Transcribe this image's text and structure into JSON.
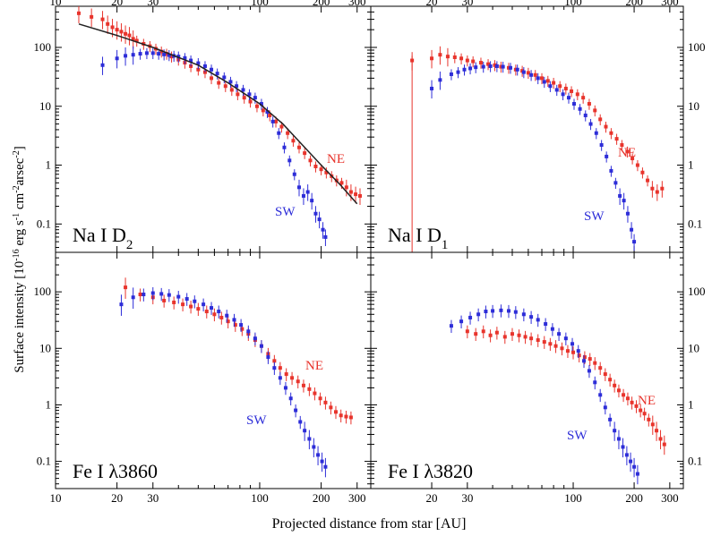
{
  "figure": {
    "ylabel": "Surface intensity [10",
    "ylabel_exp1": "-16",
    "ylabel_mid1": " erg s",
    "ylabel_exp2": "-1",
    "ylabel_mid2": " cm",
    "ylabel_exp3": "-2",
    "ylabel_mid3": "arsec",
    "ylabel_exp4": "-2",
    "ylabel_end": "]",
    "xlabel": "Projected distance from star [AU]",
    "x_ticks": [
      10,
      20,
      30,
      100,
      200,
      300
    ],
    "y_ticks_labels": [
      "0.1",
      "1",
      "10",
      "100"
    ],
    "colors": {
      "NE": "#e8342c",
      "SW": "#2d2dd8",
      "fit": "#222222",
      "frame": "#000000"
    }
  },
  "chart_data": [
    {
      "type": "scatter",
      "panel": "top-left",
      "title_base": "Na I D",
      "title_sub": "2",
      "xlim": [
        10,
        350
      ],
      "ylim": [
        0.033,
        500
      ],
      "xscale": "log",
      "yscale": "log",
      "labels": {
        "NE": "NE",
        "SW": "SW"
      },
      "fit": {
        "name": "model",
        "x": [
          13,
          20,
          30,
          50,
          70,
          100,
          130,
          160,
          200,
          250,
          300
        ],
        "y": [
          250,
          160,
          100,
          50,
          25,
          11,
          5,
          2.3,
          1.0,
          0.45,
          0.22
        ]
      },
      "series": [
        {
          "name": "NE",
          "x": [
            13,
            15,
            17,
            18,
            19,
            20,
            21,
            22,
            23,
            24,
            25,
            27,
            29,
            31,
            33,
            35,
            37,
            40,
            43,
            46,
            50,
            54,
            58,
            63,
            68,
            73,
            78,
            84,
            90,
            97,
            104,
            112,
            120,
            128,
            137,
            146,
            156,
            166,
            177,
            188,
            200,
            212,
            225,
            238,
            252,
            266,
            280,
            295,
            310
          ],
          "y": [
            380,
            330,
            300,
            250,
            220,
            200,
            185,
            170,
            160,
            140,
            130,
            115,
            105,
            95,
            85,
            78,
            70,
            62,
            55,
            48,
            42,
            38,
            30,
            25,
            22,
            19,
            16,
            14,
            12,
            10,
            8.5,
            7,
            5.5,
            4.5,
            3.5,
            2.6,
            2.0,
            1.6,
            1.2,
            0.95,
            0.85,
            0.75,
            0.65,
            0.55,
            0.5,
            0.42,
            0.35,
            0.32,
            0.3
          ]
        },
        {
          "name": "SW",
          "x": [
            17,
            20,
            22,
            24,
            26,
            28,
            30,
            32,
            34,
            36,
            38,
            40,
            43,
            46,
            50,
            54,
            58,
            62,
            67,
            72,
            77,
            83,
            89,
            95,
            102,
            109,
            116,
            124,
            132,
            140,
            148,
            156,
            164,
            172,
            180,
            188,
            196,
            204,
            210
          ],
          "y": [
            50,
            65,
            72,
            75,
            78,
            80,
            80,
            78,
            76,
            74,
            72,
            70,
            66,
            60,
            54,
            48,
            42,
            36,
            31,
            26,
            22,
            19,
            16,
            14,
            11,
            8,
            5.5,
            3.5,
            2.0,
            1.2,
            0.7,
            0.42,
            0.3,
            0.35,
            0.25,
            0.15,
            0.12,
            0.08,
            0.06
          ]
        }
      ]
    },
    {
      "type": "scatter",
      "panel": "top-right",
      "title_base": "Na I D",
      "title_sub": "1",
      "xlim": [
        10,
        350
      ],
      "ylim": [
        0.033,
        500
      ],
      "xscale": "log",
      "yscale": "log",
      "labels": {
        "NE": "NE",
        "SW": "SW"
      },
      "series": [
        {
          "name": "NE",
          "x": [
            16,
            20,
            22,
            24,
            26,
            28,
            30,
            32,
            35,
            38,
            41,
            44,
            48,
            52,
            56,
            60,
            65,
            70,
            75,
            80,
            86,
            92,
            98,
            105,
            112,
            120,
            128,
            136,
            145,
            154,
            164,
            174,
            185,
            196,
            208,
            220,
            233,
            246,
            260,
            275
          ],
          "y": [
            60,
            65,
            75,
            70,
            68,
            65,
            60,
            58,
            55,
            52,
            50,
            47,
            45,
            42,
            40,
            37,
            34,
            30,
            27,
            25,
            22,
            20,
            18,
            16,
            14,
            11,
            8.5,
            6,
            4.5,
            3.5,
            2.8,
            2.2,
            1.7,
            1.3,
            1.0,
            0.75,
            0.55,
            0.4,
            0.35,
            0.4
          ]
        },
        {
          "name": "SW",
          "x": [
            20,
            22,
            25,
            27,
            29,
            31,
            33,
            36,
            39,
            42,
            45,
            49,
            53,
            57,
            62,
            67,
            72,
            77,
            83,
            89,
            95,
            101,
            108,
            115,
            122,
            130,
            138,
            146,
            154,
            162,
            170,
            178,
            186,
            194,
            200
          ],
          "y": [
            20,
            28,
            35,
            38,
            42,
            44,
            46,
            47,
            48,
            48,
            47,
            45,
            42,
            38,
            34,
            30,
            26,
            22,
            19,
            16,
            14,
            11,
            9,
            7,
            5,
            3.5,
            2.2,
            1.4,
            0.8,
            0.5,
            0.3,
            0.25,
            0.15,
            0.08,
            0.05
          ]
        }
      ]
    },
    {
      "type": "scatter",
      "panel": "bottom-left",
      "title_base": "Fe I λ3860",
      "title_sub": "",
      "xlim": [
        10,
        350
      ],
      "ylim": [
        0.033,
        500
      ],
      "xscale": "log",
      "yscale": "log",
      "labels": {
        "NE": "NE",
        "SW": "SW"
      },
      "series": [
        {
          "name": "NE",
          "x": [
            22,
            26,
            30,
            34,
            38,
            42,
            46,
            50,
            55,
            60,
            65,
            70,
            76,
            82,
            88,
            95,
            102,
            110,
            118,
            126,
            135,
            144,
            154,
            164,
            175,
            186,
            198,
            210,
            223,
            236,
            250,
            265,
            280
          ],
          "y": [
            120,
            90,
            80,
            70,
            65,
            60,
            55,
            50,
            45,
            40,
            35,
            30,
            26,
            22,
            18,
            14,
            11,
            8,
            6,
            4.5,
            3.5,
            3.0,
            2.6,
            2.2,
            1.9,
            1.6,
            1.3,
            1.1,
            0.9,
            0.75,
            0.65,
            0.62,
            0.6
          ]
        },
        {
          "name": "SW",
          "x": [
            21,
            24,
            27,
            30,
            33,
            36,
            40,
            44,
            48,
            53,
            58,
            63,
            69,
            75,
            81,
            88,
            95,
            102,
            110,
            118,
            126,
            134,
            142,
            150,
            158,
            166,
            175,
            184,
            193,
            202,
            210
          ],
          "y": [
            60,
            80,
            90,
            95,
            92,
            88,
            82,
            75,
            68,
            60,
            52,
            45,
            38,
            32,
            26,
            20,
            15,
            11,
            7,
            4.5,
            3,
            2,
            1.3,
            0.8,
            0.5,
            0.35,
            0.25,
            0.18,
            0.13,
            0.1,
            0.08
          ]
        }
      ]
    },
    {
      "type": "scatter",
      "panel": "bottom-right",
      "title_base": "Fe I λ3820",
      "title_sub": "",
      "xlim": [
        10,
        350
      ],
      "ylim": [
        0.033,
        500
      ],
      "xscale": "log",
      "yscale": "log",
      "labels": {
        "NE": "NE",
        "SW": "SW"
      },
      "series": [
        {
          "name": "NE",
          "x": [
            30,
            33,
            36,
            39,
            42,
            46,
            50,
            54,
            58,
            62,
            67,
            72,
            77,
            82,
            88,
            94,
            100,
            107,
            114,
            121,
            128,
            136,
            144,
            152,
            160,
            168,
            177,
            186,
            195,
            205,
            215,
            225,
            236,
            247,
            258,
            270,
            282
          ],
          "y": [
            20,
            18,
            20,
            17,
            19,
            16,
            18,
            17,
            16,
            15,
            14,
            13,
            12,
            11,
            10,
            9,
            8.5,
            7.5,
            7,
            6.5,
            5.5,
            4.5,
            3.5,
            2.8,
            2.2,
            1.8,
            1.5,
            1.3,
            1.1,
            0.95,
            0.8,
            0.7,
            0.55,
            0.45,
            0.35,
            0.25,
            0.2
          ]
        },
        {
          "name": "SW",
          "x": [
            25,
            28,
            31,
            34,
            37,
            40,
            44,
            48,
            52,
            57,
            62,
            67,
            73,
            79,
            85,
            92,
            99,
            106,
            113,
            120,
            128,
            136,
            144,
            152,
            160,
            168,
            176,
            184,
            192,
            200,
            208
          ],
          "y": [
            25,
            30,
            35,
            40,
            45,
            46,
            47,
            46,
            44,
            40,
            36,
            32,
            27,
            22,
            18,
            15,
            12,
            9,
            6,
            4,
            2.5,
            1.5,
            0.9,
            0.55,
            0.35,
            0.25,
            0.18,
            0.13,
            0.1,
            0.08,
            0.06
          ]
        }
      ]
    }
  ]
}
